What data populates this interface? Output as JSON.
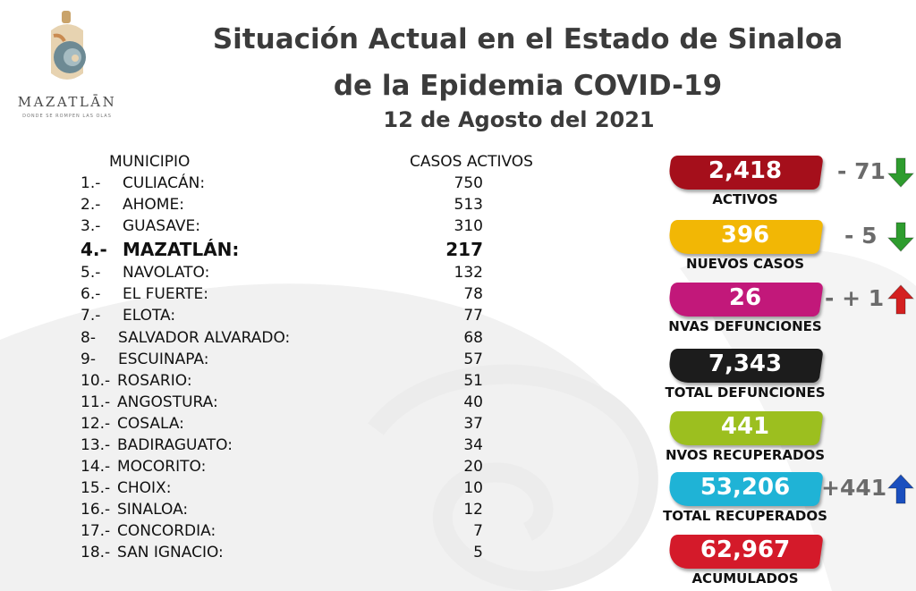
{
  "logo": {
    "word": "MAZATLĀN",
    "tagline": "DONDE SE ROMPEN LAS OLAS"
  },
  "title": {
    "line1": "Situación Actual en el Estado de Sinaloa",
    "line2": "de la Epidemia COVID-19",
    "date": "12 de Agosto del 2021"
  },
  "table": {
    "col_municipio": "MUNICIPIO",
    "col_casos": "CASOS ACTIVOS",
    "rows": [
      {
        "idx": "1.-",
        "name": "CULIACÁN:",
        "value": "750"
      },
      {
        "idx": "2.-",
        "name": "AHOME:",
        "value": "513"
      },
      {
        "idx": "3.-",
        "name": "GUASAVE:",
        "value": "310"
      },
      {
        "idx": "4.-",
        "name": "MAZATLÁN:",
        "value": "217"
      },
      {
        "idx": "5.-",
        "name": "NAVOLATO:",
        "value": "132"
      },
      {
        "idx": "6.-",
        "name": "EL FUERTE:",
        "value": "78"
      },
      {
        "idx": "7.-",
        "name": "ELOTA:",
        "value": "77"
      },
      {
        "idx": "8-",
        "name": "SALVADOR ALVARADO:",
        "value": "68"
      },
      {
        "idx": "9-",
        "name": "ESCUINAPA:",
        "value": "57"
      },
      {
        "idx": "10.-",
        "name": "ROSARIO:",
        "value": "51"
      },
      {
        "idx": "11.-",
        "name": "ANGOSTURA:",
        "value": "40"
      },
      {
        "idx": "12.-",
        "name": "COSALA:",
        "value": "37"
      },
      {
        "idx": "13.-",
        "name": "BADIRAGUATO:",
        "value": "34"
      },
      {
        "idx": "14.-",
        "name": "MOCORITO:",
        "value": "20"
      },
      {
        "idx": "15.-",
        "name": "CHOIX:",
        "value": "10"
      },
      {
        "idx": "16.-",
        "name": "SINALOA:",
        "value": "12"
      },
      {
        "idx": "17.-",
        "name": "CONCORDIA:",
        "value": "7"
      },
      {
        "idx": "18.-",
        "name": "SAN IGNACIO:",
        "value": "5"
      }
    ]
  },
  "cards": [
    {
      "value": "2,418",
      "label": "ACTIVOS",
      "color": "#a50f1b",
      "change": "- 71",
      "arrow": "down",
      "arrow_color": "#2e9c2e"
    },
    {
      "value": "396",
      "label": "NUEVOS CASOS",
      "color": "#f2b705",
      "change": "-  5",
      "arrow": "down",
      "arrow_color": "#2e9c2e"
    },
    {
      "value": "26",
      "label": "NVAS DEFUNCIONES",
      "color": "#c2187a",
      "change": "- + 1",
      "arrow": "up",
      "arrow_color": "#d42020"
    },
    {
      "value": "7,343",
      "label": "TOTAL DEFUNCIONES",
      "color": "#1c1c1c",
      "change": "",
      "arrow": "none",
      "arrow_color": ""
    },
    {
      "value": "441",
      "label": "NVOS RECUPERADOS",
      "color": "#9cbf1f",
      "change": "",
      "arrow": "none",
      "arrow_color": ""
    },
    {
      "value": "53,206",
      "label": "TOTAL RECUPERADOS",
      "color": "#1fb3d6",
      "change": "+441",
      "arrow": "up",
      "arrow_color": "#1a4fbf"
    },
    {
      "value": "62,967",
      "label": "ACUMULADOS",
      "color": "#d41a2a",
      "change": "",
      "arrow": "none",
      "arrow_color": ""
    }
  ],
  "chart_data": {
    "type": "table",
    "title": "Situación Actual en el Estado de Sinaloa de la Epidemia COVID-19",
    "subtitle": "12 de Agosto del 2021",
    "columns": [
      "MUNICIPIO",
      "CASOS ACTIVOS"
    ],
    "categories": [
      "CULIACÁN",
      "AHOME",
      "GUASAVE",
      "MAZATLÁN",
      "NAVOLATO",
      "EL FUERTE",
      "ELOTA",
      "SALVADOR ALVARADO",
      "ESCUINAPA",
      "ROSARIO",
      "ANGOSTURA",
      "COSALA",
      "BADIRAGUATO",
      "MOCORITO",
      "CHOIX",
      "SINALOA",
      "CONCORDIA",
      "SAN IGNACIO"
    ],
    "values": [
      750,
      513,
      310,
      217,
      132,
      78,
      77,
      68,
      57,
      51,
      40,
      37,
      34,
      20,
      10,
      12,
      7,
      5
    ],
    "summary": {
      "ACTIVOS": 2418,
      "NUEVOS CASOS": 396,
      "NVAS DEFUNCIONES": 26,
      "TOTAL DEFUNCIONES": 7343,
      "NVOS RECUPERADOS": 441,
      "TOTAL RECUPERADOS": 53206,
      "ACUMULADOS": 62967
    }
  }
}
